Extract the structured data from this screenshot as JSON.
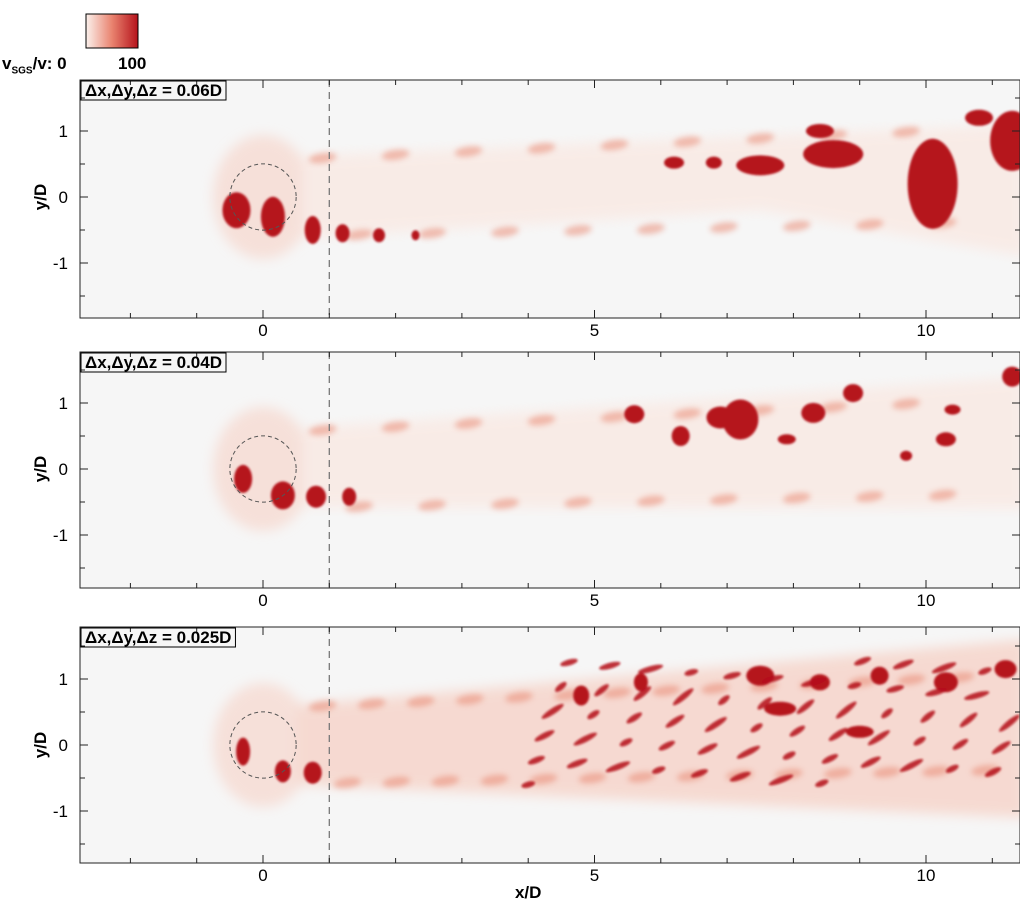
{
  "colorbar": {
    "variable": "v",
    "subscript": "SGS",
    "suffix": "/v:",
    "min_label": "0",
    "max_label": "100",
    "color_low": "#fbf1ec",
    "color_high": "#b5121b"
  },
  "chart_data": {
    "type": "heatmap",
    "field": "subgrid-scale viscosity ratio, cross-section contour",
    "xlabel": "x/D",
    "ylabel": "y/D",
    "xlim": [
      -2.8,
      11.5
    ],
    "ylim": [
      -1.85,
      1.85
    ],
    "xticks": [
      "0",
      "5",
      "10"
    ],
    "yticks": [
      "-1",
      "0",
      "1"
    ],
    "cylinder": {
      "center_x": 0,
      "center_y": 0,
      "diameter": 1
    },
    "reference_line_x": 1,
    "colorscale": {
      "min": 0,
      "max": 100
    },
    "panels": [
      {
        "label": "Δx,Δy,Δz = 0.06D"
      },
      {
        "label": "Δx,Δy,Δz = 0.04D"
      },
      {
        "label": "Δx,Δy,Δz = 0.025D"
      }
    ]
  }
}
